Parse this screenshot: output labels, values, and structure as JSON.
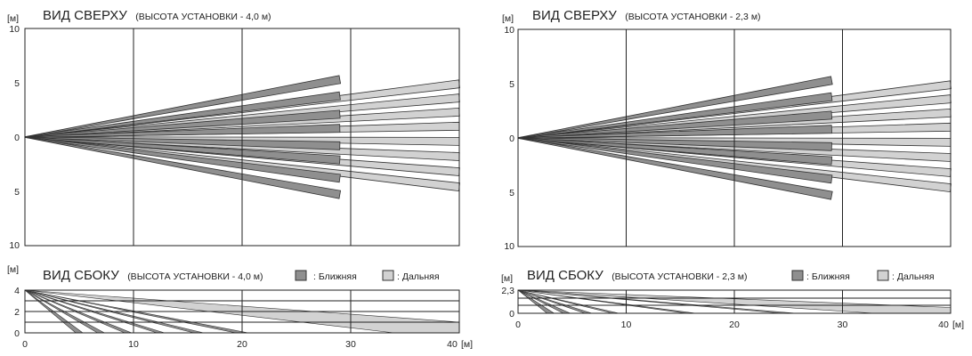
{
  "units": {
    "m": "[м]",
    "m_x": "[м]"
  },
  "colors": {
    "near": "#8f8f8f",
    "far": "#d2d2d2",
    "stroke": "#333333",
    "grid": "#222222"
  },
  "panels": [
    {
      "top": {
        "title_main": "ВИД СВЕРХУ",
        "title_sub": "(ВЫСОТА УСТАНОВКИ - 4,0 м)",
        "y_ticks": [
          "10",
          "5",
          "0",
          "5",
          "10"
        ]
      },
      "side": {
        "title_main": "ВИД СБОКУ",
        "title_sub": "(ВЫСОТА УСТАНОВКИ - 4,0 м)",
        "legend_near": ": Ближняя",
        "legend_far": ": Дальняя",
        "y_ticks": [
          "4",
          "2",
          "0"
        ],
        "x_ticks": [
          "0",
          "10",
          "20",
          "30",
          "40"
        ],
        "height": 4.0,
        "near_ground": [
          5,
          7,
          9.5,
          12.5,
          16,
          20
        ],
        "far_ground": [
          34,
          40
        ]
      }
    },
    {
      "top": {
        "title_main": "ВИД СВЕРХУ",
        "title_sub": "(ВЫСОТА УСТАНОВКИ - 2,3 м)",
        "y_ticks": [
          "10",
          "5",
          "0",
          "5",
          "10"
        ]
      },
      "side": {
        "title_main": "ВИД СБОКУ",
        "title_sub": "(ВЫСОТА УСТАНОВКИ - 2,3 м)",
        "legend_near": ": Ближняя",
        "legend_far": ": Дальняя",
        "y_ticks": [
          "2,3",
          "0"
        ],
        "x_ticks": [
          "0",
          "10",
          "20",
          "30",
          "40"
        ],
        "height": 2.3,
        "near_ground": [
          3,
          4.5,
          6.5,
          9,
          16,
          25
        ],
        "far_ground": [
          33,
          40
        ]
      }
    }
  ],
  "near_beams": [
    {
      "end_x": 29,
      "end_y": 5.3
    },
    {
      "end_x": 29,
      "end_y": 3.8
    },
    {
      "end_x": 29,
      "end_y": 2.1
    },
    {
      "end_x": 29,
      "end_y": 0.8
    },
    {
      "end_x": 29,
      "end_y": -0.8
    },
    {
      "end_x": 29,
      "end_y": -2.1
    },
    {
      "end_x": 29,
      "end_y": -3.8
    },
    {
      "end_x": 29,
      "end_y": -5.3
    }
  ],
  "far_beams": [
    {
      "end_x": 40,
      "end_y": 4.9
    },
    {
      "end_x": 40,
      "end_y": 3.6
    },
    {
      "end_x": 40,
      "end_y": 2.3
    },
    {
      "end_x": 40,
      "end_y": 1.0
    },
    {
      "end_x": 40,
      "end_y": -0.4
    },
    {
      "end_x": 40,
      "end_y": -1.8
    },
    {
      "end_x": 40,
      "end_y": -3.2
    },
    {
      "end_x": 40,
      "end_y": -4.6
    }
  ]
}
